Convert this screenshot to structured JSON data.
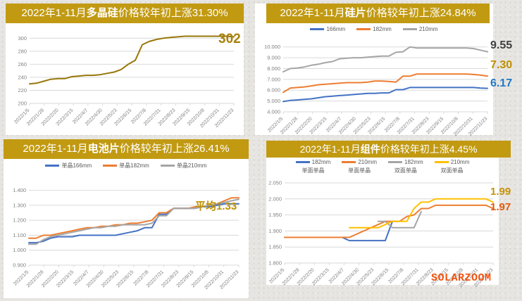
{
  "watermark": "SOLARZOOM",
  "panels": [
    {
      "header": {
        "prefix": "2022年1-11月",
        "term": "多晶硅",
        "suffix": "价格较年初上涨31.30%"
      }
    },
    {
      "header": {
        "prefix": "2022年1-11月",
        "term": "硅片",
        "suffix": "价格较年初上涨24.84%"
      }
    },
    {
      "header": {
        "prefix": "2022年1-11月",
        "term": "电池片",
        "suffix": "价格较年初上涨26.41%"
      }
    },
    {
      "header": {
        "prefix": "2022年1-11月",
        "term": "组件",
        "suffix": "价格较年初上涨4.45%"
      }
    }
  ],
  "chart_data": [
    {
      "type": "line",
      "title": "2022年1-11月多晶硅价格较年初上涨31.30%",
      "legend_visible": false,
      "ylim": [
        200,
        310
      ],
      "yticks": [
        200,
        220,
        240,
        260,
        280,
        300
      ],
      "ytick_labels": [
        "200",
        "220",
        "240",
        "260",
        "280",
        "300"
      ],
      "x_tick_labels": [
        "2022/1/5",
        "2022/1/28",
        "2022/2/20",
        "2022/3/15",
        "2022/4/7",
        "2022/4/30",
        "2022/5/23",
        "2022/6/15",
        "2022/7/8",
        "2022/7/31",
        "2022/8/23",
        "2022/9/15",
        "2022/10/8",
        "2022/10/31",
        "2022/11/23"
      ],
      "series": [
        {
          "name": "多晶硅",
          "color": "#97770a",
          "values": [
            230,
            231,
            234,
            237,
            238,
            238,
            241,
            242,
            243,
            243,
            244,
            246,
            248,
            252,
            260,
            266,
            290,
            295,
            298,
            300,
            301,
            302,
            303,
            303,
            303,
            303,
            303,
            303,
            303,
            302
          ]
        }
      ],
      "annotations": [
        {
          "text": "302",
          "color": "#a8820b"
        }
      ]
    },
    {
      "type": "line",
      "title": "2022年1-11月硅片价格较年初上涨24.84%",
      "legend_visible": true,
      "ylim": [
        4,
        10.5
      ],
      "yticks": [
        4,
        5,
        6,
        7,
        8,
        9,
        10
      ],
      "ytick_labels": [
        "4.000",
        "5.000",
        "6.000",
        "7.000",
        "8.000",
        "9.000",
        "10.000"
      ],
      "x_tick_labels": [
        "2022/1/5",
        "2022/1/28",
        "2022/2/20",
        "2022/3/15",
        "2022/4/7",
        "2022/4/30",
        "2022/5/23",
        "2022/6/15",
        "2022/7/8",
        "2022/7/31",
        "2022/8/23",
        "2022/9/15",
        "2022/10/8",
        "2022/10/31",
        "2022/11/23"
      ],
      "series": [
        {
          "name": "166mm",
          "color": "#4472c4",
          "values": [
            4.95,
            5.05,
            5.1,
            5.15,
            5.2,
            5.3,
            5.4,
            5.45,
            5.5,
            5.55,
            5.6,
            5.65,
            5.7,
            5.7,
            5.75,
            5.75,
            6.05,
            6.05,
            6.25,
            6.25,
            6.25,
            6.25,
            6.25,
            6.25,
            6.25,
            6.25,
            6.25,
            6.25,
            6.2,
            6.17
          ]
        },
        {
          "name": "182mm",
          "color": "#ed7d31",
          "values": [
            5.8,
            6.2,
            6.25,
            6.3,
            6.4,
            6.5,
            6.55,
            6.6,
            6.65,
            6.7,
            6.7,
            6.7,
            6.75,
            6.85,
            6.85,
            6.8,
            6.75,
            7.3,
            7.3,
            7.5,
            7.5,
            7.5,
            7.5,
            7.5,
            7.5,
            7.5,
            7.5,
            7.45,
            7.4,
            7.3
          ]
        },
        {
          "name": "210mm",
          "color": "#a5a5a5",
          "values": [
            7.7,
            8.0,
            8.05,
            8.15,
            8.3,
            8.4,
            8.55,
            8.65,
            8.9,
            8.95,
            9.0,
            9.0,
            9.05,
            9.1,
            9.15,
            9.15,
            9.5,
            9.55,
            10.0,
            9.9,
            9.9,
            9.9,
            9.9,
            9.9,
            9.9,
            9.9,
            9.9,
            9.85,
            9.7,
            9.55
          ]
        }
      ],
      "annotations": [
        {
          "text": "9.55",
          "color": "#3f3f3f"
        },
        {
          "text": "7.30",
          "color": "#bf9000"
        },
        {
          "text": "6.17",
          "color": "#2079c5"
        }
      ]
    },
    {
      "type": "line",
      "title": "2022年1-11月电池片价格较年初上涨26.41%",
      "legend_visible": true,
      "ylim": [
        0.9,
        1.45
      ],
      "yticks": [
        0.9,
        1.0,
        1.1,
        1.2,
        1.3,
        1.4
      ],
      "ytick_labels": [
        "0.900",
        "1.000",
        "1.100",
        "1.200",
        "1.300",
        "1.400"
      ],
      "x_tick_labels": [
        "2022/1/5",
        "2022/1/28",
        "2022/2/20",
        "2022/3/15",
        "2022/4/7",
        "2022/4/30",
        "2022/5/23",
        "2022/6/15",
        "2022/7/8",
        "2022/7/31",
        "2022/8/23",
        "2022/9/15",
        "2022/10/8",
        "2022/10/31",
        "2022/11/23"
      ],
      "series": [
        {
          "name": "单晶166mm",
          "color": "#4472c4",
          "values": [
            1.05,
            1.05,
            1.06,
            1.08,
            1.09,
            1.09,
            1.09,
            1.1,
            1.1,
            1.1,
            1.1,
            1.1,
            1.1,
            1.11,
            1.12,
            1.13,
            1.15,
            1.15,
            1.24,
            1.24,
            1.28,
            1.28,
            1.28,
            1.28,
            1.29,
            1.29,
            1.3,
            1.31,
            1.31,
            1.31
          ]
        },
        {
          "name": "单晶182mm",
          "color": "#ed7d31",
          "values": [
            1.08,
            1.08,
            1.1,
            1.1,
            1.11,
            1.12,
            1.13,
            1.14,
            1.15,
            1.15,
            1.16,
            1.16,
            1.17,
            1.17,
            1.18,
            1.18,
            1.19,
            1.2,
            1.25,
            1.25,
            1.28,
            1.28,
            1.28,
            1.29,
            1.29,
            1.3,
            1.31,
            1.33,
            1.35,
            1.35
          ]
        },
        {
          "name": "单晶210mm",
          "color": "#a5a5a5",
          "values": [
            1.04,
            1.04,
            1.07,
            1.09,
            1.1,
            1.11,
            1.12,
            1.13,
            1.14,
            1.15,
            1.15,
            1.16,
            1.16,
            1.17,
            1.17,
            1.17,
            1.17,
            1.18,
            1.23,
            1.23,
            1.28,
            1.28,
            1.28,
            1.28,
            1.29,
            1.3,
            1.31,
            1.32,
            1.33,
            1.34
          ]
        }
      ],
      "annotations": [
        {
          "text": "平均1.33",
          "color": "#bf9000"
        }
      ]
    },
    {
      "type": "line",
      "title": "2022年1-11月组件价格较年初上涨4.45%",
      "legend_visible": true,
      "ylim": [
        1.8,
        2.05
      ],
      "yticks": [
        1.8,
        1.85,
        1.9,
        1.95,
        2.0,
        2.05
      ],
      "ytick_labels": [
        "1.800",
        "1.850",
        "1.900",
        "1.950",
        "2.000",
        "2.050"
      ],
      "x_tick_labels": [
        "2022/1/5",
        "2022/1/28",
        "2022/2/20",
        "2022/3/15",
        "2022/4/7",
        "2022/4/30",
        "2022/5/23",
        "2022/6/15",
        "2022/7/8",
        "2022/7/31",
        "2022/8/23",
        "2022/9/15",
        "2022/10/8",
        "2022/10/31",
        "2022/11/23"
      ],
      "series": [
        {
          "name": "182mm",
          "sub": "单面单晶",
          "color": "#4472c4",
          "values": [
            1.88,
            1.88,
            1.88,
            1.88,
            1.88,
            1.88,
            1.88,
            1.88,
            1.88,
            1.87,
            1.87,
            1.87,
            1.87,
            1.87,
            1.87,
            1.93,
            null,
            null,
            null,
            null,
            null,
            null,
            null,
            null,
            null,
            null,
            null,
            null,
            null,
            null
          ]
        },
        {
          "name": "210mm",
          "sub": "单面单晶",
          "color": "#ed7d31",
          "values": [
            1.88,
            1.88,
            1.88,
            1.88,
            1.88,
            1.88,
            1.88,
            1.88,
            1.88,
            1.88,
            1.89,
            1.9,
            1.91,
            1.92,
            1.93,
            1.93,
            1.93,
            1.945,
            1.95,
            1.97,
            1.97,
            1.98,
            1.98,
            1.98,
            1.98,
            1.98,
            1.98,
            1.98,
            1.98,
            1.97
          ]
        },
        {
          "name": "182mm",
          "sub": "双面单晶",
          "color": "#a5a5a5",
          "values": [
            null,
            null,
            null,
            null,
            null,
            null,
            null,
            null,
            null,
            null,
            null,
            null,
            null,
            1.93,
            1.93,
            1.91,
            1.91,
            1.91,
            1.91,
            1.96,
            null,
            null,
            null,
            null,
            null,
            null,
            null,
            null,
            null,
            null
          ]
        },
        {
          "name": "210mm",
          "sub": "双面单晶",
          "color": "#ffc000",
          "values": [
            null,
            null,
            null,
            null,
            null,
            null,
            null,
            null,
            null,
            1.91,
            1.91,
            1.91,
            1.91,
            1.91,
            1.92,
            1.93,
            1.93,
            1.93,
            1.97,
            1.99,
            1.99,
            2.0,
            2.0,
            2.0,
            2.0,
            2.0,
            2.0,
            2.0,
            2.0,
            1.99
          ]
        }
      ],
      "annotations": [
        {
          "text": "1.99",
          "color": "#c5920b"
        },
        {
          "text": "1.97",
          "color": "#e2590a"
        }
      ]
    }
  ]
}
